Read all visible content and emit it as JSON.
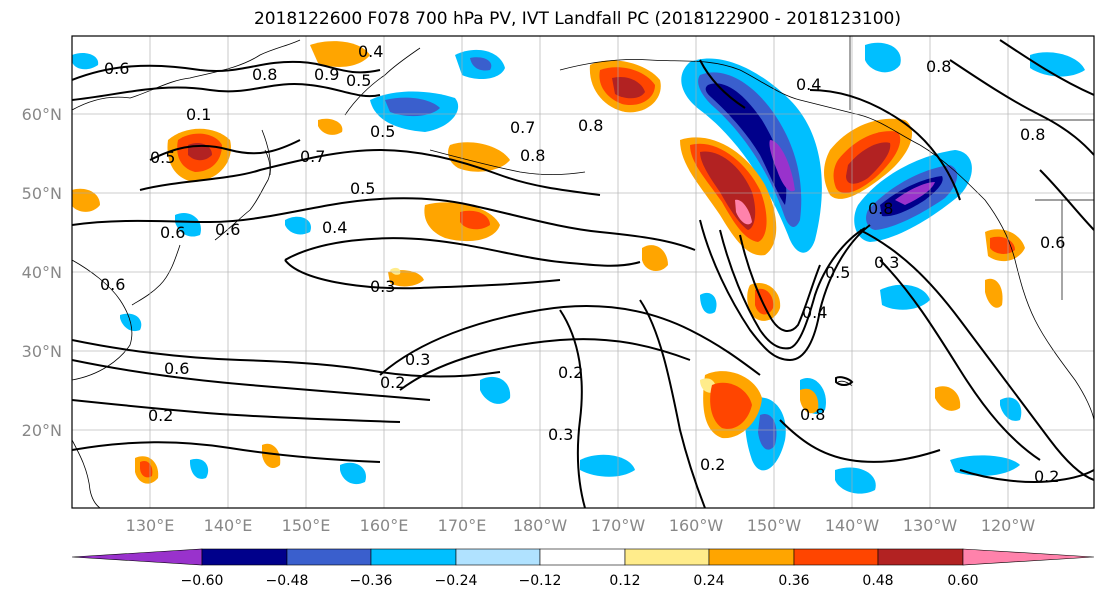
{
  "title": "2018122600 F078 700 hPa PV, IVT Landfall PC (2018122900 - 2018123100)",
  "lat_labels": [
    "60°N",
    "50°N",
    "40°N",
    "30°N",
    "20°N"
  ],
  "lon_labels": [
    "130°E",
    "140°E",
    "150°E",
    "160°E",
    "170°E",
    "180°W",
    "170°W",
    "160°W",
    "150°W",
    "140°W",
    "130°W",
    "120°W"
  ],
  "colorbar": {
    "ticks": [
      "−0.60",
      "−0.48",
      "−0.36",
      "−0.24",
      "−0.12",
      "0.12",
      "0.24",
      "0.36",
      "0.48",
      "0.60"
    ],
    "colors": [
      "#9932CC",
      "#00008B",
      "#3A5FCD",
      "#00BFFF",
      "#B0E2FF",
      "#FFFFFF",
      "#FFEC8B",
      "#FFA500",
      "#FF4500",
      "#B22222",
      "#FF82AB"
    ]
  },
  "contour_labels": [
    "0.6",
    "0.8",
    "0.4",
    "0.9",
    "0.5",
    "0.1",
    "0.5",
    "0.5",
    "0.7",
    "0.7",
    "0.8",
    "0.4",
    "0.5",
    "0.8",
    "0.6",
    "0.4",
    "0.3",
    "0.6",
    "0.2",
    "0.2",
    "0.3",
    "0.2",
    "0.3",
    "0.2",
    "0.5",
    "0.4",
    "0.3",
    "0.8",
    "0.6",
    "0.8",
    "0.2",
    "0.8",
    "0.6",
    "0.6",
    "0.8"
  ]
}
